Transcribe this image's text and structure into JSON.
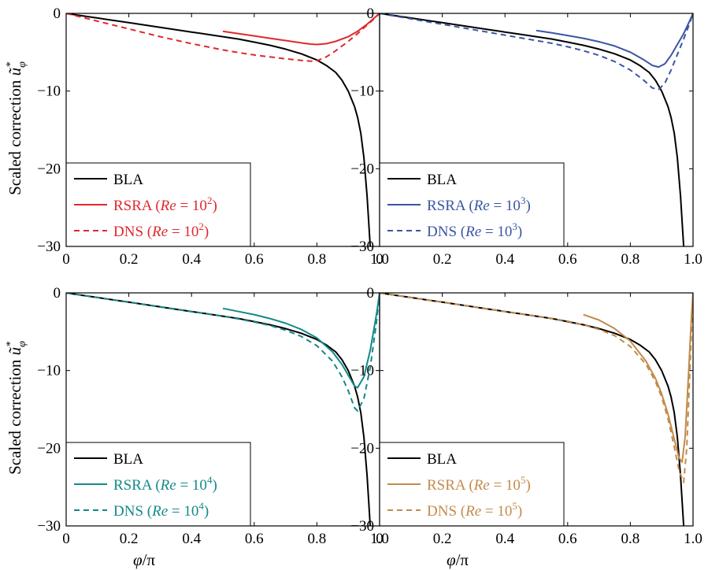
{
  "figure": {
    "ylabel_text": "Scaled correction ",
    "ylabel_symbol": "ũ",
    "ylabel_sup": "*",
    "ylabel_sub": "φ",
    "xlabel_symbol": "φ",
    "xlabel_rest": "/π"
  },
  "chart_data": [
    {
      "type": "line",
      "xlim": [
        0,
        1.0
      ],
      "ylim": [
        -30,
        0
      ],
      "xticks": [
        "0",
        "0.2",
        "0.4",
        "0.6",
        "0.8",
        "1.0"
      ],
      "yticks": [
        "0",
        "−10",
        "−20",
        "−30"
      ],
      "xlabel": "",
      "ylabel": "Scaled correction ũ*φ",
      "legend_position": "bottom-left",
      "grid": false,
      "series": [
        {
          "name": "BLA",
          "color": "#000000",
          "dash": "solid",
          "x": [
            0,
            0.05,
            0.1,
            0.15,
            0.2,
            0.25,
            0.3,
            0.35,
            0.4,
            0.45,
            0.5,
            0.55,
            0.6,
            0.65,
            0.7,
            0.75,
            0.8,
            0.83,
            0.86,
            0.88,
            0.9,
            0.92,
            0.93,
            0.94,
            0.95,
            0.96,
            0.97
          ],
          "y": [
            0,
            -0.3,
            -0.6,
            -0.9,
            -1.2,
            -1.5,
            -1.8,
            -2.1,
            -2.4,
            -2.7,
            -3.0,
            -3.3,
            -3.7,
            -4.1,
            -4.6,
            -5.2,
            -6.0,
            -6.7,
            -7.6,
            -8.6,
            -10.0,
            -12.0,
            -13.4,
            -15.4,
            -18.6,
            -23.5,
            -30.0
          ]
        },
        {
          "name": "RSRA (Re = 10²)",
          "label_main": "RSRA (",
          "label_re": "Re",
          "label_eq": " = 10",
          "label_exp": "2",
          "label_close": ")",
          "color": "#e0282e",
          "dash": "solid",
          "x": [
            0.5,
            0.55,
            0.6,
            0.65,
            0.7,
            0.75,
            0.78,
            0.8,
            0.83,
            0.86,
            0.9,
            0.93,
            0.96,
            0.98,
            1.0
          ],
          "y": [
            -2.3,
            -2.6,
            -2.9,
            -3.2,
            -3.5,
            -3.8,
            -3.95,
            -4.0,
            -3.9,
            -3.6,
            -3.0,
            -2.3,
            -1.4,
            -0.7,
            0
          ]
        },
        {
          "name": "DNS (Re = 10²)",
          "label_main": "DNS (",
          "label_re": "Re",
          "label_eq": " = 10",
          "label_exp": "2",
          "label_close": ")",
          "color": "#e0282e",
          "dash": "dashed",
          "x": [
            0,
            0.05,
            0.1,
            0.15,
            0.2,
            0.25,
            0.3,
            0.35,
            0.4,
            0.45,
            0.5,
            0.55,
            0.6,
            0.65,
            0.7,
            0.75,
            0.78,
            0.8,
            0.83,
            0.86,
            0.9,
            0.93,
            0.96,
            0.98,
            1.0
          ],
          "y": [
            0,
            -0.5,
            -1.0,
            -1.5,
            -2.0,
            -2.5,
            -3.0,
            -3.45,
            -3.9,
            -4.3,
            -4.7,
            -5.05,
            -5.35,
            -5.6,
            -5.85,
            -6.05,
            -6.15,
            -6.1,
            -5.6,
            -4.8,
            -3.6,
            -2.6,
            -1.5,
            -0.8,
            0
          ]
        }
      ]
    },
    {
      "type": "line",
      "xlim": [
        0,
        1.0
      ],
      "ylim": [
        -30,
        0
      ],
      "xticks": [
        "0",
        "0.2",
        "0.4",
        "0.6",
        "0.8",
        "1.0"
      ],
      "yticks": [
        "0",
        "−10",
        "−20",
        "−30"
      ],
      "xlabel": "",
      "ylabel": "",
      "legend_position": "bottom-left",
      "grid": false,
      "series": [
        {
          "name": "BLA",
          "color": "#000000",
          "dash": "solid",
          "x": [
            0,
            0.05,
            0.1,
            0.15,
            0.2,
            0.25,
            0.3,
            0.35,
            0.4,
            0.45,
            0.5,
            0.55,
            0.6,
            0.65,
            0.7,
            0.75,
            0.8,
            0.83,
            0.86,
            0.88,
            0.9,
            0.92,
            0.93,
            0.94,
            0.95,
            0.96,
            0.97
          ],
          "y": [
            0,
            -0.3,
            -0.6,
            -0.9,
            -1.2,
            -1.5,
            -1.8,
            -2.1,
            -2.4,
            -2.7,
            -3.0,
            -3.3,
            -3.7,
            -4.1,
            -4.6,
            -5.2,
            -6.0,
            -6.7,
            -7.6,
            -8.6,
            -10.0,
            -12.0,
            -13.4,
            -15.4,
            -18.6,
            -23.5,
            -30.0
          ]
        },
        {
          "name": "RSRA (Re = 10³)",
          "label_main": "RSRA (",
          "label_re": "Re",
          "label_eq": " = 10",
          "label_exp": "3",
          "label_close": ")",
          "color": "#3a55a3",
          "dash": "solid",
          "x": [
            0.5,
            0.55,
            0.6,
            0.65,
            0.7,
            0.75,
            0.8,
            0.84,
            0.87,
            0.89,
            0.91,
            0.93,
            0.95,
            0.97,
            0.99,
            1.0
          ],
          "y": [
            -2.2,
            -2.5,
            -2.85,
            -3.2,
            -3.65,
            -4.2,
            -5.0,
            -5.9,
            -6.7,
            -6.9,
            -6.5,
            -5.4,
            -4.0,
            -2.6,
            -0.9,
            0
          ]
        },
        {
          "name": "DNS (Re = 10³)",
          "label_main": "DNS (",
          "label_re": "Re",
          "label_eq": " = 10",
          "label_exp": "3",
          "label_close": ")",
          "color": "#3a55a3",
          "dash": "dashed",
          "x": [
            0,
            0.05,
            0.1,
            0.15,
            0.2,
            0.25,
            0.3,
            0.35,
            0.4,
            0.45,
            0.5,
            0.55,
            0.6,
            0.65,
            0.7,
            0.75,
            0.8,
            0.84,
            0.87,
            0.89,
            0.91,
            0.93,
            0.95,
            0.97,
            0.99,
            1.0
          ],
          "y": [
            0,
            -0.35,
            -0.7,
            -1.05,
            -1.4,
            -1.75,
            -2.1,
            -2.45,
            -2.8,
            -3.15,
            -3.5,
            -3.85,
            -4.3,
            -4.8,
            -5.4,
            -6.2,
            -7.3,
            -8.5,
            -9.6,
            -9.8,
            -9.0,
            -7.3,
            -5.3,
            -3.3,
            -1.2,
            0
          ]
        }
      ]
    },
    {
      "type": "line",
      "xlim": [
        0,
        1.0
      ],
      "ylim": [
        -30,
        0
      ],
      "xticks": [
        "0",
        "0.2",
        "0.4",
        "0.6",
        "0.8",
        "1.0"
      ],
      "yticks": [
        "0",
        "−10",
        "−20",
        "−30"
      ],
      "xlabel": "φ/π",
      "ylabel": "Scaled correction ũ*φ",
      "legend_position": "bottom-left",
      "grid": false,
      "series": [
        {
          "name": "BLA",
          "color": "#000000",
          "dash": "solid",
          "x": [
            0,
            0.05,
            0.1,
            0.15,
            0.2,
            0.25,
            0.3,
            0.35,
            0.4,
            0.45,
            0.5,
            0.55,
            0.6,
            0.65,
            0.7,
            0.75,
            0.8,
            0.83,
            0.86,
            0.88,
            0.9,
            0.92,
            0.93,
            0.94,
            0.95,
            0.96,
            0.97
          ],
          "y": [
            0,
            -0.3,
            -0.6,
            -0.9,
            -1.2,
            -1.5,
            -1.8,
            -2.1,
            -2.4,
            -2.7,
            -3.0,
            -3.3,
            -3.7,
            -4.1,
            -4.6,
            -5.2,
            -6.0,
            -6.7,
            -7.6,
            -8.6,
            -10.0,
            -12.0,
            -13.4,
            -15.4,
            -18.6,
            -23.5,
            -30.0
          ]
        },
        {
          "name": "RSRA (Re = 10⁴)",
          "label_main": "RSRA (",
          "label_re": "Re",
          "label_eq": " = 10",
          "label_exp": "4",
          "label_close": ")",
          "color": "#13898a",
          "dash": "solid",
          "x": [
            0.5,
            0.55,
            0.6,
            0.65,
            0.7,
            0.75,
            0.8,
            0.85,
            0.88,
            0.9,
            0.92,
            0.93,
            0.95,
            0.97,
            0.99,
            1.0
          ],
          "y": [
            -2.0,
            -2.4,
            -2.8,
            -3.3,
            -3.9,
            -4.7,
            -5.8,
            -7.6,
            -9.2,
            -10.6,
            -12.0,
            -12.2,
            -10.8,
            -7.4,
            -2.8,
            0
          ]
        },
        {
          "name": "DNS (Re = 10⁴)",
          "label_main": "DNS (",
          "label_re": "Re",
          "label_eq": " = 10",
          "label_exp": "4",
          "label_close": ")",
          "color": "#13898a",
          "dash": "dashed",
          "x": [
            0,
            0.05,
            0.1,
            0.15,
            0.2,
            0.25,
            0.3,
            0.35,
            0.4,
            0.45,
            0.5,
            0.55,
            0.6,
            0.65,
            0.7,
            0.75,
            0.8,
            0.85,
            0.88,
            0.9,
            0.92,
            0.93,
            0.95,
            0.97,
            0.99,
            1.0
          ],
          "y": [
            0,
            -0.3,
            -0.6,
            -0.9,
            -1.2,
            -1.5,
            -1.8,
            -2.1,
            -2.4,
            -2.7,
            -3.0,
            -3.35,
            -3.75,
            -4.2,
            -4.8,
            -5.6,
            -6.8,
            -8.8,
            -10.8,
            -12.6,
            -14.8,
            -15.2,
            -13.6,
            -9.6,
            -3.8,
            0
          ]
        }
      ]
    },
    {
      "type": "line",
      "xlim": [
        0,
        1.0
      ],
      "ylim": [
        -30,
        0
      ],
      "xticks": [
        "0",
        "0.2",
        "0.4",
        "0.6",
        "0.8",
        "1.0"
      ],
      "yticks": [
        "0",
        "−10",
        "−20",
        "−30"
      ],
      "xlabel": "φ/π",
      "ylabel": "",
      "legend_position": "bottom-left",
      "grid": false,
      "series": [
        {
          "name": "BLA",
          "color": "#000000",
          "dash": "solid",
          "x": [
            0,
            0.05,
            0.1,
            0.15,
            0.2,
            0.25,
            0.3,
            0.35,
            0.4,
            0.45,
            0.5,
            0.55,
            0.6,
            0.65,
            0.7,
            0.75,
            0.8,
            0.83,
            0.86,
            0.88,
            0.9,
            0.92,
            0.93,
            0.94,
            0.95,
            0.96,
            0.97
          ],
          "y": [
            0,
            -0.3,
            -0.6,
            -0.9,
            -1.2,
            -1.5,
            -1.8,
            -2.1,
            -2.4,
            -2.7,
            -3.0,
            -3.3,
            -3.7,
            -4.1,
            -4.6,
            -5.2,
            -6.0,
            -6.7,
            -7.6,
            -8.6,
            -10.0,
            -12.0,
            -13.4,
            -15.4,
            -18.6,
            -23.5,
            -30.0
          ]
        },
        {
          "name": "RSRA (Re = 10⁵)",
          "label_main": "RSRA (",
          "label_re": "Re",
          "label_eq": " = 10",
          "label_exp": "5",
          "label_close": ")",
          "color": "#c38a4c",
          "dash": "solid",
          "x": [
            0.65,
            0.7,
            0.75,
            0.8,
            0.85,
            0.88,
            0.9,
            0.92,
            0.94,
            0.955,
            0.965,
            0.975,
            0.985,
            0.995,
            1.0
          ],
          "y": [
            -2.8,
            -3.5,
            -4.6,
            -6.2,
            -8.8,
            -11.0,
            -13.0,
            -15.6,
            -18.8,
            -21.2,
            -21.8,
            -18.5,
            -11.0,
            -3.0,
            0
          ]
        },
        {
          "name": "DNS (Re = 10⁵)",
          "label_main": "DNS (",
          "label_re": "Re",
          "label_eq": " = 10",
          "label_exp": "5",
          "label_close": ")",
          "color": "#c38a4c",
          "dash": "dashed",
          "x": [
            0,
            0.05,
            0.1,
            0.15,
            0.2,
            0.25,
            0.3,
            0.35,
            0.4,
            0.45,
            0.5,
            0.55,
            0.6,
            0.65,
            0.7,
            0.75,
            0.8,
            0.85,
            0.88,
            0.9,
            0.92,
            0.94,
            0.955,
            0.97,
            0.98,
            0.99,
            1.0
          ],
          "y": [
            0,
            -0.3,
            -0.6,
            -0.9,
            -1.2,
            -1.5,
            -1.8,
            -2.1,
            -2.4,
            -2.7,
            -3.0,
            -3.3,
            -3.65,
            -4.1,
            -4.7,
            -5.5,
            -6.9,
            -9.2,
            -11.4,
            -13.4,
            -16.2,
            -19.8,
            -22.8,
            -24.4,
            -20.0,
            -10.0,
            0
          ]
        }
      ]
    }
  ]
}
